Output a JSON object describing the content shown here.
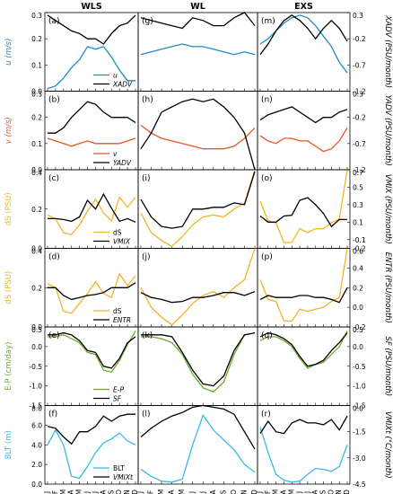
{
  "columns": [
    "WLS",
    "WL",
    "EXS"
  ],
  "months": [
    "J",
    "F",
    "M",
    "A",
    "M",
    "J",
    "J",
    "A",
    "S",
    "O",
    "N",
    "D"
  ],
  "colors": {
    "blue": "#1f8ccb",
    "orange": "#e8572a",
    "gold": "#f2b42a",
    "green": "#6aaa2a",
    "cyan": "#3ab9e6",
    "black": "#000000"
  },
  "chart_data": [
    {
      "type": "line",
      "row": 0,
      "ylabel_left": "u (m/s)",
      "ylabel_right": "XADV (PSU/month)",
      "left_ticks": [
        "0.3",
        "0.2",
        "0.1",
        "0.0"
      ],
      "left_range": [
        0.0,
        0.3
      ],
      "right_ticks": [
        "0.3",
        "-0.2",
        "-0.7",
        "-1.2"
      ],
      "right_range": [
        -1.2,
        0.3
      ],
      "left_color": "blue",
      "right_color": "black",
      "legend": [
        {
          "label": "u",
          "color": "blue"
        },
        {
          "label": "XADV",
          "color": "black"
        }
      ],
      "legend_col": 0,
      "panels": [
        {
          "label": "(a)",
          "left": [
            0.01,
            0.02,
            0.05,
            0.09,
            0.12,
            0.17,
            0.16,
            0.17,
            0.13,
            0.08,
            0.04,
            0.04
          ],
          "right": [
            0.25,
            0.15,
            0.05,
            -0.05,
            -0.1,
            -0.2,
            -0.2,
            -0.3,
            -0.1,
            0.05,
            0.1,
            0.25
          ]
        },
        {
          "label": "(g)",
          "left": [
            0.14,
            0.15,
            0.16,
            0.17,
            0.18,
            0.17,
            0.17,
            0.16,
            0.15,
            0.14,
            0.15,
            0.14
          ],
          "right": [
            0.2,
            0.15,
            0.1,
            0.05,
            0.0,
            0.2,
            0.15,
            0.05,
            0.05,
            0.2,
            0.3,
            0.05
          ]
        },
        {
          "label": "(m)",
          "left": [
            0.18,
            0.2,
            0.23,
            0.26,
            0.28,
            0.29,
            0.28,
            0.25,
            0.21,
            0.17,
            0.11,
            0.07
          ],
          "right": [
            -0.5,
            -0.3,
            -0.05,
            0.15,
            0.25,
            0.15,
            0.0,
            -0.2,
            0.0,
            0.15,
            0.0,
            -0.25
          ]
        }
      ]
    },
    {
      "type": "line",
      "row": 1,
      "ylabel_left": "v (m/s)",
      "ylabel_right": "YADV (PSU/month)",
      "left_ticks": [
        "0.3",
        "0.2",
        "0.1",
        "0.0"
      ],
      "left_range": [
        0.0,
        0.3
      ],
      "right_ticks": [
        "0.3",
        "-0.2",
        "-0.7",
        "-1.2"
      ],
      "right_range": [
        -1.2,
        0.3
      ],
      "left_color": "orange",
      "right_color": "black",
      "legend": [
        {
          "label": "v",
          "color": "orange"
        },
        {
          "label": "YADV",
          "color": "black"
        }
      ],
      "legend_col": 0,
      "panels": [
        {
          "label": "(b)",
          "left": [
            0.12,
            0.11,
            0.1,
            0.09,
            0.1,
            0.11,
            0.1,
            0.1,
            0.1,
            0.1,
            0.11,
            0.12
          ],
          "right": [
            -0.5,
            -0.5,
            -0.4,
            -0.2,
            -0.05,
            0.1,
            0.05,
            -0.1,
            -0.2,
            -0.2,
            -0.2,
            -0.3
          ]
        },
        {
          "label": "(h)",
          "left": [
            0.17,
            0.14,
            0.12,
            0.11,
            0.1,
            0.09,
            0.08,
            0.08,
            0.08,
            0.09,
            0.12,
            0.16
          ],
          "right": [
            -0.8,
            -0.5,
            -0.1,
            0.0,
            0.1,
            0.15,
            0.1,
            0.15,
            0.0,
            -0.2,
            -0.5,
            -1.2
          ]
        },
        {
          "label": "(n)",
          "left": [
            0.13,
            0.11,
            0.1,
            0.12,
            0.12,
            0.11,
            0.11,
            0.09,
            0.07,
            0.08,
            0.11,
            0.16
          ],
          "right": [
            -0.25,
            -0.15,
            -0.1,
            -0.05,
            0.0,
            -0.1,
            -0.2,
            -0.3,
            -0.2,
            -0.2,
            -0.1,
            -0.05
          ]
        }
      ]
    },
    {
      "type": "line",
      "row": 2,
      "ylabel_left": "dS (PSU)",
      "ylabel_right": "VMIX (PSU/month)",
      "left_ticks": [
        "0.4",
        "0.2",
        "0.0"
      ],
      "left_range": [
        0.0,
        0.4
      ],
      "right_ticks": [
        "0.7",
        "0.5",
        "0.3",
        "0.1",
        "-0.1",
        "-0.2"
      ],
      "right_range": [
        -0.2,
        0.7
      ],
      "left_color": "gold",
      "right_color": "black",
      "legend": [
        {
          "label": "dS",
          "color": "gold"
        },
        {
          "label": "VMIX",
          "color": "black"
        }
      ],
      "legend_col": 0,
      "panels": [
        {
          "label": "(c)",
          "left": [
            0.17,
            0.15,
            0.08,
            0.07,
            0.12,
            0.19,
            0.25,
            0.18,
            0.14,
            0.26,
            0.21,
            0.26
          ],
          "right": [
            0.14,
            0.14,
            0.13,
            0.11,
            0.16,
            0.35,
            0.25,
            0.42,
            0.26,
            0.11,
            0.14,
            0.1
          ]
        },
        {
          "label": "(i)",
          "left": [
            0.18,
            0.08,
            0.04,
            0.01,
            0.06,
            0.12,
            0.16,
            0.17,
            0.16,
            0.2,
            0.23,
            0.4
          ],
          "right": [
            0.36,
            0.16,
            0.05,
            0.03,
            0.05,
            0.25,
            0.25,
            0.27,
            0.27,
            0.32,
            0.3,
            0.68
          ]
        },
        {
          "label": "(o)",
          "left": [
            0.24,
            0.14,
            0.13,
            0.03,
            0.03,
            0.1,
            0.08,
            0.1,
            0.1,
            0.13,
            0.15,
            0.4
          ],
          "right": [
            0.17,
            0.1,
            0.1,
            0.17,
            0.18,
            0.35,
            0.38,
            0.3,
            0.2,
            0.05,
            0.13,
            0.13
          ]
        }
      ]
    },
    {
      "type": "line",
      "row": 3,
      "ylabel_left": "dS (PSU)",
      "ylabel_right": "ENTR (PSU/month)",
      "left_ticks": [
        "0.4",
        "0.2",
        "0.0"
      ],
      "left_range": [
        0.0,
        0.4
      ],
      "right_ticks": [
        "0.6",
        "0.4",
        "0.2",
        "0.0",
        "-0.2"
      ],
      "right_range": [
        -0.2,
        0.6
      ],
      "left_color": "gold",
      "right_color": "black",
      "legend": [
        {
          "label": "dS",
          "color": "gold"
        },
        {
          "label": "ENTR",
          "color": "black"
        }
      ],
      "legend_col": 0,
      "panels": [
        {
          "label": "(d)",
          "left": [
            0.22,
            0.2,
            0.08,
            0.07,
            0.12,
            0.17,
            0.23,
            0.17,
            0.15,
            0.27,
            0.21,
            0.26
          ],
          "right": [
            0.2,
            0.2,
            0.12,
            0.08,
            0.1,
            0.12,
            0.13,
            0.15,
            0.2,
            0.2,
            0.2,
            0.25
          ]
        },
        {
          "label": "(j)",
          "left": [
            0.2,
            0.1,
            0.05,
            0.01,
            0.06,
            0.12,
            0.16,
            0.18,
            0.15,
            0.2,
            0.24,
            0.4
          ],
          "right": [
            0.15,
            0.1,
            0.08,
            0.05,
            0.06,
            0.1,
            0.1,
            0.12,
            0.15,
            0.15,
            0.12,
            0.16
          ]
        },
        {
          "label": "(p)",
          "left": [
            0.24,
            0.14,
            0.13,
            0.03,
            0.03,
            0.09,
            0.08,
            0.09,
            0.1,
            0.13,
            0.15,
            0.4
          ],
          "right": [
            0.08,
            0.12,
            0.1,
            0.1,
            0.1,
            0.12,
            0.12,
            0.1,
            0.1,
            0.08,
            0.05,
            0.2
          ]
        }
      ]
    },
    {
      "type": "line",
      "row": 4,
      "ylabel_left": "E-P (cm/day)",
      "ylabel_right": "SF (PSU/month)",
      "left_ticks": [
        "0.5",
        "0.0",
        "-0.5",
        "-1.0",
        "-1.5"
      ],
      "left_range": [
        -1.5,
        0.5
      ],
      "right_ticks": [
        "0.5",
        "0.0",
        "-0.5",
        "-1.0",
        "-1.5"
      ],
      "right_range": [
        -1.5,
        0.5
      ],
      "left_color": "green",
      "right_color": "black",
      "legend": [
        {
          "label": "E-P",
          "color": "green"
        },
        {
          "label": "SF",
          "color": "black"
        }
      ],
      "legend_col": 0,
      "panels": [
        {
          "label": "(e)",
          "left": [
            0.25,
            0.25,
            0.3,
            0.2,
            0.1,
            -0.15,
            -0.2,
            -0.6,
            -0.65,
            -0.35,
            0.05,
            0.4
          ],
          "right": [
            0.3,
            0.3,
            0.35,
            0.3,
            0.15,
            -0.1,
            -0.15,
            -0.5,
            -0.55,
            -0.3,
            0.1,
            0.25
          ]
        },
        {
          "label": "(k)",
          "left": [
            0.25,
            0.25,
            0.2,
            0.1,
            -0.2,
            -0.7,
            -1.05,
            -1.15,
            -0.9,
            -0.2,
            0.3,
            0.35
          ],
          "right": [
            0.3,
            0.3,
            0.3,
            0.25,
            -0.15,
            -0.6,
            -0.95,
            -1.0,
            -0.75,
            -0.1,
            0.3,
            0.35
          ]
        },
        {
          "label": "(q)",
          "left": [
            0.15,
            0.25,
            0.25,
            0.15,
            0.0,
            -0.3,
            -0.55,
            -0.45,
            -0.4,
            -0.2,
            0.0,
            0.4
          ],
          "right": [
            0.25,
            0.35,
            0.3,
            0.2,
            0.05,
            -0.25,
            -0.5,
            -0.45,
            -0.35,
            -0.1,
            0.1,
            0.35
          ]
        }
      ]
    },
    {
      "type": "line",
      "row": 5,
      "ylabel_left": "BLT (m)",
      "ylabel_right": "VMIXt (°C/month)",
      "left_ticks": [
        "8.0",
        "6.0",
        "4.0",
        "2.0",
        "0.0"
      ],
      "left_range": [
        0.0,
        8.0
      ],
      "right_ticks": [
        "0.0",
        "-1.5",
        "-3.0",
        "-4.5"
      ],
      "right_range": [
        -4.5,
        0.0
      ],
      "left_color": "cyan",
      "right_color": "black",
      "legend": [
        {
          "label": "BLT",
          "color": "cyan"
        },
        {
          "label": "VMIXt",
          "color": "black"
        }
      ],
      "legend_col": 0,
      "panels": [
        {
          "label": "(f)",
          "left": [
            4.0,
            5.5,
            4.0,
            0.8,
            0.6,
            1.8,
            3.2,
            4.2,
            4.6,
            5.2,
            4.4,
            4.0
          ],
          "right": [
            -1.2,
            -1.3,
            -1.8,
            -2.2,
            -1.5,
            -1.5,
            -1.2,
            -0.6,
            -0.9,
            -0.6,
            -0.5,
            -0.5
          ]
        },
        {
          "label": "(l)",
          "left": [
            1.5,
            0.8,
            0.3,
            0.2,
            0.5,
            4.0,
            7.0,
            5.5,
            4.5,
            3.5,
            2.0,
            1.2
          ],
          "right": [
            -1.8,
            -1.3,
            -0.9,
            -0.6,
            -0.4,
            -0.1,
            0.0,
            -0.1,
            -0.2,
            -0.5,
            -1.5,
            -2.5
          ]
        },
        {
          "label": "(r)",
          "left": [
            5.8,
            3.2,
            1.0,
            0.4,
            0.2,
            0.3,
            1.0,
            1.6,
            1.5,
            1.3,
            1.8,
            4.0
          ],
          "right": [
            -1.6,
            -0.9,
            -1.5,
            -1.6,
            -1.0,
            -0.8,
            -1.0,
            -1.0,
            -1.1,
            -0.8,
            -1.4,
            -0.6
          ]
        }
      ]
    }
  ]
}
